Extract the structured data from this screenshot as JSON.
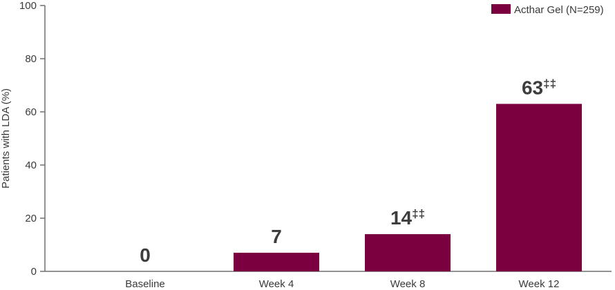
{
  "chart_data": {
    "type": "bar",
    "categories": [
      "Baseline",
      "Week 4",
      "Week 8",
      "Week 12"
    ],
    "series": [
      {
        "name": "Acthar Gel (N=259)",
        "values": [
          0,
          7,
          14,
          63
        ],
        "color": "#7a0040"
      }
    ],
    "data_labels": [
      "0",
      "7",
      "14",
      "63"
    ],
    "data_label_superscripts": [
      "",
      "",
      "‡‡",
      "‡‡"
    ],
    "ylabel": "Patients with LDA (%)",
    "xlabel": "",
    "ylim": [
      0,
      100
    ],
    "yticks": [
      0,
      20,
      40,
      60,
      80,
      100
    ],
    "grid": false,
    "legend": "top-right"
  }
}
